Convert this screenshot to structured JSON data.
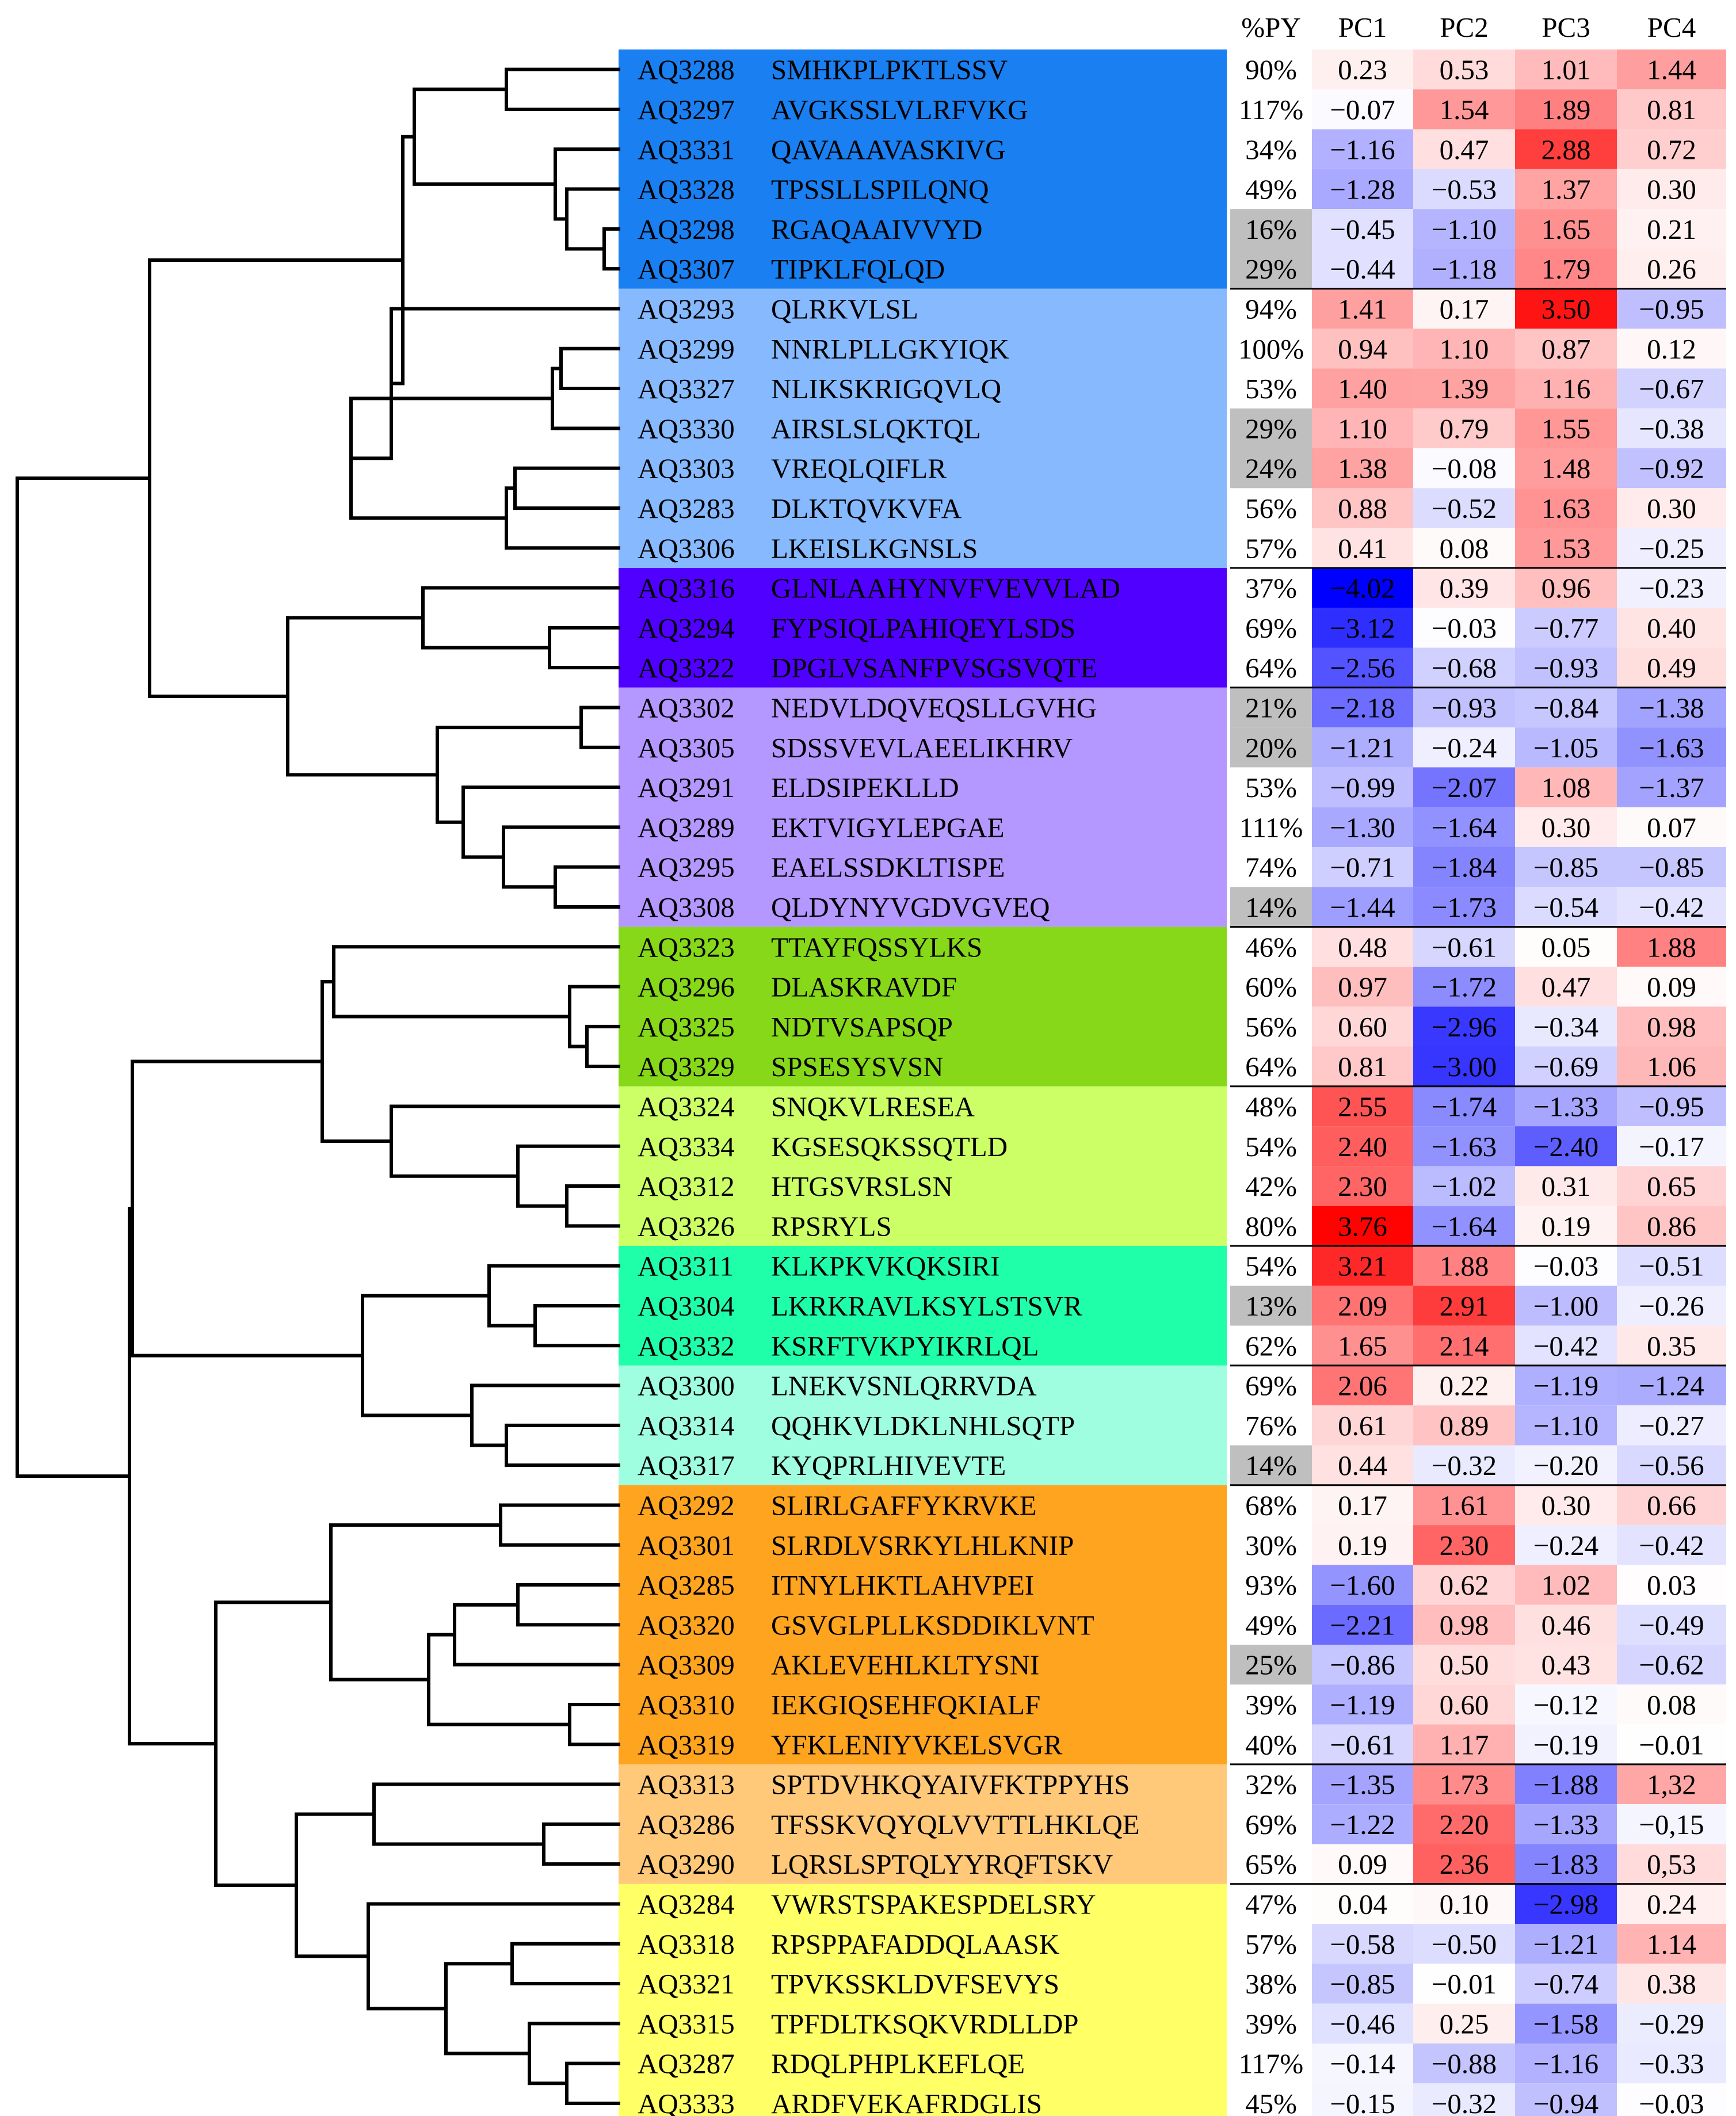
{
  "chart_data": {
    "type": "heatmap",
    "title": "",
    "columns": [
      "%PY",
      "PC1",
      "PC2",
      "PC3",
      "PC4"
    ],
    "value_range": [
      -4.02,
      3.76
    ],
    "color_scale": {
      "negative": "#0000ff",
      "zero": "#ffffff",
      "positive": "#ff0000",
      "low_py": "#bfbfbf"
    },
    "clusters": [
      {
        "color": "#1a7ff0",
        "count": 6
      },
      {
        "color": "#87b9ff",
        "count": 7
      },
      {
        "color": "#5000ff",
        "count": 3
      },
      {
        "color": "#b497ff",
        "count": 6
      },
      {
        "color": "#86d819",
        "count": 4
      },
      {
        "color": "#ccff66",
        "count": 4
      },
      {
        "color": "#1fffaa",
        "count": 3
      },
      {
        "color": "#9ffde0",
        "count": 3
      },
      {
        "color": "#ffa41f",
        "count": 7
      },
      {
        "color": "#ffc979",
        "count": 3
      },
      {
        "color": "#ffff66",
        "count": 6
      }
    ],
    "rows": [
      {
        "id": "AQ3288",
        "seq": "SMHKPLPKTLSSV",
        "py": "90%",
        "pc1": "0.23",
        "pc2": "0.53",
        "pc3": "1.01",
        "pc4": "1.44"
      },
      {
        "id": "AQ3297",
        "seq": "AVGKSSLVLRFVKG",
        "py": "117%",
        "pc1": "−0.07",
        "pc2": "1.54",
        "pc3": "1.89",
        "pc4": "0.81"
      },
      {
        "id": "AQ3331",
        "seq": "QAVAAAVASKIVG",
        "py": "34%",
        "pc1": "−1.16",
        "pc2": "0.47",
        "pc3": "2.88",
        "pc4": "0.72"
      },
      {
        "id": "AQ3328",
        "seq": "TPSSLLSPILQNQ",
        "py": "49%",
        "pc1": "−1.28",
        "pc2": "−0.53",
        "pc3": "1.37",
        "pc4": "0.30"
      },
      {
        "id": "AQ3298",
        "seq": "RGAQAAIVVYD",
        "py": "16%",
        "pc1": "−0.45",
        "pc2": "−1.10",
        "pc3": "1.65",
        "pc4": "0.21"
      },
      {
        "id": "AQ3307",
        "seq": "TIPKLFQLQD",
        "py": "29%",
        "pc1": "−0.44",
        "pc2": "−1.18",
        "pc3": "1.79",
        "pc4": "0.26"
      },
      {
        "id": "AQ3293",
        "seq": "QLRKVLSL",
        "py": "94%",
        "pc1": "1.41",
        "pc2": "0.17",
        "pc3": "3.50",
        "pc4": "−0.95"
      },
      {
        "id": "AQ3299",
        "seq": "NNRLPLLGKYIQK",
        "py": "100%",
        "pc1": "0.94",
        "pc2": "1.10",
        "pc3": "0.87",
        "pc4": "0.12"
      },
      {
        "id": "AQ3327",
        "seq": "NLIKSKRIGQVLQ",
        "py": "53%",
        "pc1": "1.40",
        "pc2": "1.39",
        "pc3": "1.16",
        "pc4": "−0.67"
      },
      {
        "id": "AQ3330",
        "seq": "AIRSLSLQKTQL",
        "py": "29%",
        "pc1": "1.10",
        "pc2": "0.79",
        "pc3": "1.55",
        "pc4": "−0.38"
      },
      {
        "id": "AQ3303",
        "seq": "VREQLQIFLR",
        "py": "24%",
        "pc1": "1.38",
        "pc2": "−0.08",
        "pc3": "1.48",
        "pc4": "−0.92"
      },
      {
        "id": "AQ3283",
        "seq": "DLKTQVKVFA",
        "py": "56%",
        "pc1": "0.88",
        "pc2": "−0.52",
        "pc3": "1.63",
        "pc4": "0.30"
      },
      {
        "id": "AQ3306",
        "seq": "LKEISLKGNSLS",
        "py": "57%",
        "pc1": "0.41",
        "pc2": "0.08",
        "pc3": "1.53",
        "pc4": "−0.25"
      },
      {
        "id": "AQ3316",
        "seq": "GLNLAAHYNVFVEVVLAD",
        "py": "37%",
        "pc1": "−4.02",
        "pc2": "0.39",
        "pc3": "0.96",
        "pc4": "−0.23"
      },
      {
        "id": "AQ3294",
        "seq": "FYPSIQLPAHIQEYLSDS",
        "py": "69%",
        "pc1": "−3.12",
        "pc2": "−0.03",
        "pc3": "−0.77",
        "pc4": "0.40"
      },
      {
        "id": "AQ3322",
        "seq": "DPGLVSANFPVSGSVQTE",
        "py": "64%",
        "pc1": "−2.56",
        "pc2": "−0.68",
        "pc3": "−0.93",
        "pc4": "0.49"
      },
      {
        "id": "AQ3302",
        "seq": "NEDVLDQVEQSLLGVHG",
        "py": "21%",
        "pc1": "−2.18",
        "pc2": "−0.93",
        "pc3": "−0.84",
        "pc4": "−1.38"
      },
      {
        "id": "AQ3305",
        "seq": "SDSSVEVLAEELIKHRV",
        "py": "20%",
        "pc1": "−1.21",
        "pc2": "−0.24",
        "pc3": "−1.05",
        "pc4": "−1.63"
      },
      {
        "id": "AQ3291",
        "seq": "ELDSIPEKLLD",
        "py": "53%",
        "pc1": "−0.99",
        "pc2": "−2.07",
        "pc3": "1.08",
        "pc4": "−1.37"
      },
      {
        "id": "AQ3289",
        "seq": "EKTVIGYLEPGAE",
        "py": "111%",
        "pc1": "−1.30",
        "pc2": "−1.64",
        "pc3": "0.30",
        "pc4": "0.07"
      },
      {
        "id": "AQ3295",
        "seq": "EAELSSDKLTISPE",
        "py": "74%",
        "pc1": "−0.71",
        "pc2": "−1.84",
        "pc3": "−0.85",
        "pc4": "−0.85"
      },
      {
        "id": "AQ3308",
        "seq": "QLDYNYVGDVGVEQ",
        "py": "14%",
        "pc1": "−1.44",
        "pc2": "−1.73",
        "pc3": "−0.54",
        "pc4": "−0.42"
      },
      {
        "id": "AQ3323",
        "seq": "TTAYFQSSYLKS",
        "py": "46%",
        "pc1": "0.48",
        "pc2": "−0.61",
        "pc3": "0.05",
        "pc4": "1.88"
      },
      {
        "id": "AQ3296",
        "seq": "DLASKRAVDF",
        "py": "60%",
        "pc1": "0.97",
        "pc2": "−1.72",
        "pc3": "0.47",
        "pc4": "0.09"
      },
      {
        "id": "AQ3325",
        "seq": "NDTVSAPSQP",
        "py": "56%",
        "pc1": "0.60",
        "pc2": "−2.96",
        "pc3": "−0.34",
        "pc4": "0.98"
      },
      {
        "id": "AQ3329",
        "seq": "SPSESYSVSN",
        "py": "64%",
        "pc1": "0.81",
        "pc2": "−3.00",
        "pc3": "−0.69",
        "pc4": "1.06"
      },
      {
        "id": "AQ3324",
        "seq": "SNQKVLRESEA",
        "py": "48%",
        "pc1": "2.55",
        "pc2": "−1.74",
        "pc3": "−1.33",
        "pc4": "−0.95"
      },
      {
        "id": "AQ3334",
        "seq": "KGSESQKSSQTLD",
        "py": "54%",
        "pc1": "2.40",
        "pc2": "−1.63",
        "pc3": "−2.40",
        "pc4": "−0.17"
      },
      {
        "id": "AQ3312",
        "seq": "HTGSVRSLSN",
        "py": "42%",
        "pc1": "2.30",
        "pc2": "−1.02",
        "pc3": "0.31",
        "pc4": "0.65"
      },
      {
        "id": "AQ3326",
        "seq": "RPSRYLS",
        "py": "80%",
        "pc1": "3.76",
        "pc2": "−1.64",
        "pc3": "0.19",
        "pc4": "0.86"
      },
      {
        "id": "AQ3311",
        "seq": "KLKPKVKQKSIRI",
        "py": "54%",
        "pc1": "3.21",
        "pc2": "1.88",
        "pc3": "−0.03",
        "pc4": "−0.51"
      },
      {
        "id": "AQ3304",
        "seq": "LKRKRAVLKSYLSTSVR",
        "py": "13%",
        "pc1": "2.09",
        "pc2": "2.91",
        "pc3": "−1.00",
        "pc4": "−0.26"
      },
      {
        "id": "AQ3332",
        "seq": "KSRFTVKPYIKRLQL",
        "py": "62%",
        "pc1": "1.65",
        "pc2": "2.14",
        "pc3": "−0.42",
        "pc4": "0.35"
      },
      {
        "id": "AQ3300",
        "seq": "LNEKVSNLQRRVDA",
        "py": "69%",
        "pc1": "2.06",
        "pc2": "0.22",
        "pc3": "−1.19",
        "pc4": "−1.24"
      },
      {
        "id": "AQ3314",
        "seq": "QQHKVLDKLNHLSQTP",
        "py": "76%",
        "pc1": "0.61",
        "pc2": "0.89",
        "pc3": "−1.10",
        "pc4": "−0.27"
      },
      {
        "id": "AQ3317",
        "seq": "KYQPRLHIVEVTE",
        "py": "14%",
        "pc1": "0.44",
        "pc2": "−0.32",
        "pc3": "−0.20",
        "pc4": "−0.56"
      },
      {
        "id": "AQ3292",
        "seq": "SLIRLGAFFYKRVKE",
        "py": "68%",
        "pc1": "0.17",
        "pc2": "1.61",
        "pc3": "0.30",
        "pc4": "0.66"
      },
      {
        "id": "AQ3301",
        "seq": "SLRDLVSRKYLHLKNIP",
        "py": "30%",
        "pc1": "0.19",
        "pc2": "2.30",
        "pc3": "−0.24",
        "pc4": "−0.42"
      },
      {
        "id": "AQ3285",
        "seq": "ITNYLHKTLAHVPEI",
        "py": "93%",
        "pc1": "−1.60",
        "pc2": "0.62",
        "pc3": "1.02",
        "pc4": "0.03"
      },
      {
        "id": "AQ3320",
        "seq": "GSVGLPLLKSDDIKLVNT",
        "py": "49%",
        "pc1": "−2.21",
        "pc2": "0.98",
        "pc3": "0.46",
        "pc4": "−0.49"
      },
      {
        "id": "AQ3309",
        "seq": "AKLEVEHLKLTYSNI",
        "py": "25%",
        "pc1": "−0.86",
        "pc2": "0.50",
        "pc3": "0.43",
        "pc4": "−0.62"
      },
      {
        "id": "AQ3310",
        "seq": "IEKGIQSEHFQKIALF",
        "py": "39%",
        "pc1": "−1.19",
        "pc2": "0.60",
        "pc3": "−0.12",
        "pc4": "0.08"
      },
      {
        "id": "AQ3319",
        "seq": "YFKLENIYVKELSVGR",
        "py": "40%",
        "pc1": "−0.61",
        "pc2": "1.17",
        "pc3": "−0.19",
        "pc4": "−0.01"
      },
      {
        "id": "AQ3313",
        "seq": "SPTDVHKQYAIVFKTPPYHS",
        "py": "32%",
        "pc1": "−1.35",
        "pc2": "1.73",
        "pc3": "−1.88",
        "pc4": "1,32"
      },
      {
        "id": "AQ3286",
        "seq": "TFSSKVQYQLVVTTLHKLQE",
        "py": "69%",
        "pc1": "−1.22",
        "pc2": "2.20",
        "pc3": "−1.33",
        "pc4": "−0,15"
      },
      {
        "id": "AQ3290",
        "seq": "LQRSLSPTQLYYRQFTSKV",
        "py": "65%",
        "pc1": "0.09",
        "pc2": "2.36",
        "pc3": "−1.83",
        "pc4": "0,53"
      },
      {
        "id": "AQ3284",
        "seq": "VWRSTSPAKESPDELSRY",
        "py": "47%",
        "pc1": "0.04",
        "pc2": "0.10",
        "pc3": "−2.98",
        "pc4": "0.24"
      },
      {
        "id": "AQ3318",
        "seq": "RPSPPAFADDQLAASK",
        "py": "57%",
        "pc1": "−0.58",
        "pc2": "−0.50",
        "pc3": "−1.21",
        "pc4": "1.14"
      },
      {
        "id": "AQ3321",
        "seq": "TPVKSSKLDVFSEVYS",
        "py": "38%",
        "pc1": "−0.85",
        "pc2": "−0.01",
        "pc3": "−0.74",
        "pc4": "0.38"
      },
      {
        "id": "AQ3315",
        "seq": "TPFDLTKSQKVRDLLDP",
        "py": "39%",
        "pc1": "−0.46",
        "pc2": "0.25",
        "pc3": "−1.58",
        "pc4": "−0.29"
      },
      {
        "id": "AQ3287",
        "seq": "RDQLPHPLKEFLQE",
        "py": "117%",
        "pc1": "−0.14",
        "pc2": "−0.88",
        "pc3": "−1.16",
        "pc4": "−0.33"
      },
      {
        "id": "AQ3333",
        "seq": "ARDFVEKAFRDGLIS",
        "py": "45%",
        "pc1": "−0.15",
        "pc2": "−0.32",
        "pc3": "−0.94",
        "pc4": "−0.03"
      }
    ],
    "low_py_rows": [
      "AQ3298",
      "AQ3307",
      "AQ3330",
      "AQ3303",
      "AQ3302",
      "AQ3305",
      "AQ3308",
      "AQ3304",
      "AQ3317",
      "AQ3309"
    ]
  }
}
